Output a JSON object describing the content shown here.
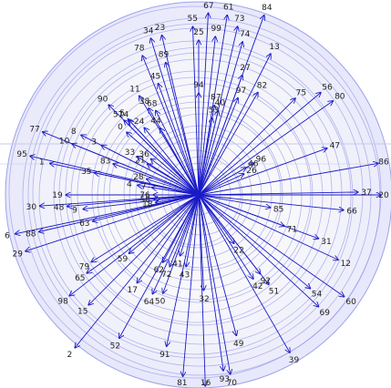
{
  "diagram": {
    "kind": "radial-arrow-plot",
    "colors": {
      "ring_fill": "#a9acf0",
      "ring_stroke": "#7b7fe0",
      "arrow": "#1a1ac8",
      "guide": "#c7c9f2",
      "label": "#222222",
      "background": "#ffffff"
    },
    "arrows": [
      {
        "label": "0",
        "angle": 221,
        "length": 105
      },
      {
        "label": "1",
        "angle": 192,
        "length": 167
      },
      {
        "label": "2",
        "angle": 129,
        "length": 216
      },
      {
        "label": "3",
        "angle": 207,
        "length": 120
      },
      {
        "label": "4",
        "angle": 189,
        "length": 68
      },
      {
        "label": "5",
        "angle": 227,
        "length": 114
      },
      {
        "label": "6",
        "angle": 168,
        "length": 206
      },
      {
        "label": "7",
        "angle": 189,
        "length": 52
      },
      {
        "label": "8",
        "angle": 207,
        "length": 145
      },
      {
        "label": "9",
        "angle": 173,
        "length": 128
      },
      {
        "label": "10",
        "angle": 202,
        "length": 150
      },
      {
        "label": "11",
        "angle": 239,
        "length": 127
      },
      {
        "label": "12",
        "angle": 25,
        "length": 169
      },
      {
        "label": "13",
        "angle": 297,
        "length": 174
      },
      {
        "label": "14",
        "angle": 227,
        "length": 112
      },
      {
        "label": "15",
        "angle": 135,
        "length": 171
      },
      {
        "label": "16",
        "angle": 88,
        "length": 210
      },
      {
        "label": "17",
        "angle": 125,
        "length": 118
      },
      {
        "label": "18",
        "angle": 170,
        "length": 48
      },
      {
        "label": "19",
        "angle": 180,
        "length": 146
      },
      {
        "label": "20",
        "angle": 0,
        "length": 200
      },
      {
        "label": "21",
        "angle": 211,
        "length": 66
      },
      {
        "label": "22",
        "angle": 54,
        "length": 66
      },
      {
        "label": "23",
        "angle": 257,
        "length": 180
      },
      {
        "label": "24",
        "angle": 231,
        "length": 95
      },
      {
        "label": "25",
        "angle": 270,
        "length": 170
      },
      {
        "label": "26",
        "angle": 335,
        "length": 55
      },
      {
        "label": "27",
        "angle": 290,
        "length": 140
      },
      {
        "label": "28",
        "angle": 197,
        "length": 60
      },
      {
        "label": "29",
        "angle": 162,
        "length": 200
      },
      {
        "label": "30",
        "angle": 176,
        "length": 175
      },
      {
        "label": "31",
        "angle": 20,
        "length": 140
      },
      {
        "label": "32",
        "angle": 87,
        "length": 105
      },
      {
        "label": "33",
        "angle": 212,
        "length": 80
      },
      {
        "label": "34",
        "angle": 253,
        "length": 180
      },
      {
        "label": "35",
        "angle": 192,
        "length": 117
      },
      {
        "label": "36",
        "angle": 217,
        "length": 66
      },
      {
        "label": "37",
        "angle": 359,
        "length": 175
      },
      {
        "label": "38",
        "angle": 240,
        "length": 110
      },
      {
        "label": "39",
        "angle": 60,
        "length": 200
      },
      {
        "label": "40",
        "angle": 283,
        "length": 95
      },
      {
        "label": "41",
        "angle": 107,
        "length": 70
      },
      {
        "label": "42",
        "angle": 57,
        "length": 110
      },
      {
        "label": "43",
        "angle": 100,
        "length": 80
      },
      {
        "label": "44",
        "angle": 240,
        "length": 85
      },
      {
        "label": "45",
        "angle": 250,
        "length": 130
      },
      {
        "label": "46",
        "angle": 330,
        "length": 60
      },
      {
        "label": "47",
        "angle": 340,
        "length": 150
      },
      {
        "label": "48",
        "angle": 175,
        "length": 145
      },
      {
        "label": "49",
        "angle": 75,
        "length": 160
      },
      {
        "label": "50",
        "angle": 110,
        "length": 115
      },
      {
        "label": "51",
        "angle": 52,
        "length": 125
      },
      {
        "label": "52",
        "angle": 119,
        "length": 180
      },
      {
        "label": "53",
        "angle": 280,
        "length": 86
      },
      {
        "label": "54",
        "angle": 40,
        "length": 160
      },
      {
        "label": "55",
        "angle": 268,
        "length": 185
      },
      {
        "label": "56",
        "angle": 320,
        "length": 175
      },
      {
        "label": "57",
        "angle": 225,
        "length": 116
      },
      {
        "label": "58",
        "angle": 175,
        "length": 50
      },
      {
        "label": "59",
        "angle": 140,
        "length": 100
      },
      {
        "label": "60",
        "angle": 35,
        "length": 195
      },
      {
        "label": "61",
        "angle": 279,
        "length": 200
      },
      {
        "label": "62",
        "angle": 118,
        "length": 84
      },
      {
        "label": "63",
        "angle": 166,
        "length": 120
      },
      {
        "label": "64",
        "angle": 115,
        "length": 120
      },
      {
        "label": "65",
        "angle": 145,
        "length": 150
      },
      {
        "label": "66",
        "angle": 6,
        "length": 160
      },
      {
        "label": "67",
        "angle": 273,
        "length": 200
      },
      {
        "label": "68",
        "angle": 243,
        "length": 104
      },
      {
        "label": "69",
        "angle": 43,
        "length": 180
      },
      {
        "label": "70",
        "angle": 80,
        "length": 200
      },
      {
        "label": "71",
        "angle": 20,
        "length": 100
      },
      {
        "label": "72",
        "angle": 112,
        "length": 85
      },
      {
        "label": "73",
        "angle": 283,
        "length": 190
      },
      {
        "label": "74",
        "angle": 286,
        "length": 175
      },
      {
        "label": "75",
        "angle": 315,
        "length": 150
      },
      {
        "label": "76",
        "angle": 180,
        "length": 50
      },
      {
        "label": "77",
        "angle": 202,
        "length": 185
      },
      {
        "label": "78",
        "angle": 248,
        "length": 165
      },
      {
        "label": "79",
        "angle": 148,
        "length": 139
      },
      {
        "label": "80",
        "angle": 325,
        "length": 180
      },
      {
        "label": "81",
        "angle": 95,
        "length": 200
      },
      {
        "label": "82",
        "angle": 300,
        "length": 130
      },
      {
        "label": "83",
        "angle": 200,
        "length": 100
      },
      {
        "label": "84",
        "angle": 290,
        "length": 210
      },
      {
        "label": "85",
        "angle": 10,
        "length": 80
      },
      {
        "label": "86",
        "angle": 350,
        "length": 200
      },
      {
        "label": "87",
        "angle": 280,
        "length": 100
      },
      {
        "label": "88",
        "angle": 167,
        "length": 180
      },
      {
        "label": "89",
        "angle": 256,
        "length": 150
      },
      {
        "label": "90",
        "angle": 225,
        "length": 140
      },
      {
        "label": "91",
        "angle": 102,
        "length": 170
      },
      {
        "label": "92",
        "angle": 52,
        "length": 110
      },
      {
        "label": "93",
        "angle": 82,
        "length": 195
      },
      {
        "label": "94",
        "angle": 270,
        "length": 112
      },
      {
        "label": "95",
        "angle": 193,
        "length": 190
      },
      {
        "label": "96",
        "angle": 330,
        "length": 70
      },
      {
        "label": "97",
        "angle": 292,
        "length": 115
      },
      {
        "label": "98",
        "angle": 142,
        "length": 180
      },
      {
        "label": "99",
        "angle": 276,
        "length": 175
      }
    ]
  }
}
